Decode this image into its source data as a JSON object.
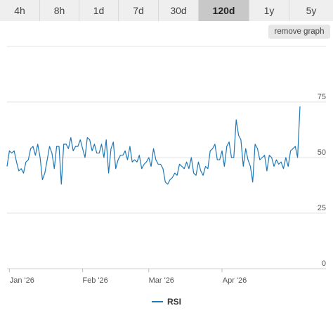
{
  "range_tabs": [
    "4h",
    "8h",
    "1d",
    "7d",
    "30d",
    "120d",
    "1y",
    "5y"
  ],
  "active_tab": "120d",
  "remove_button_label": "remove graph",
  "chart_data": {
    "type": "line",
    "title": "",
    "xlabel": "",
    "ylabel": "",
    "ylim": [
      0,
      100
    ],
    "y_ticks": [
      0,
      25,
      50,
      75
    ],
    "x_ticks": [
      {
        "label": "Jan '26",
        "date": "2026-01-01"
      },
      {
        "label": "Feb '26",
        "date": "2026-02-01"
      },
      {
        "label": "Mar '26",
        "date": "2026-03-01"
      },
      {
        "label": "Apr '26",
        "date": "2026-04-01"
      }
    ],
    "x_range": [
      "2025-12-31",
      "2026-05-15"
    ],
    "grid": true,
    "legend": "bottom-center",
    "series": [
      {
        "name": "RSI",
        "color": "#1f77b4",
        "points": [
          [
            "2025-12-31",
            46
          ],
          [
            "2026-01-01",
            53
          ],
          [
            "2026-01-02",
            52
          ],
          [
            "2026-01-03",
            53
          ],
          [
            "2026-01-04",
            48
          ],
          [
            "2026-01-05",
            44
          ],
          [
            "2026-01-06",
            45
          ],
          [
            "2026-01-07",
            43
          ],
          [
            "2026-01-08",
            48
          ],
          [
            "2026-01-09",
            49
          ],
          [
            "2026-01-10",
            54
          ],
          [
            "2026-01-11",
            55
          ],
          [
            "2026-01-12",
            51
          ],
          [
            "2026-01-13",
            56
          ],
          [
            "2026-01-14",
            50
          ],
          [
            "2026-01-15",
            40
          ],
          [
            "2026-01-16",
            43
          ],
          [
            "2026-01-17",
            49
          ],
          [
            "2026-01-18",
            55
          ],
          [
            "2026-01-19",
            52
          ],
          [
            "2026-01-20",
            45
          ],
          [
            "2026-01-21",
            55
          ],
          [
            "2026-01-22",
            55
          ],
          [
            "2026-01-23",
            38
          ],
          [
            "2026-01-24",
            56
          ],
          [
            "2026-01-25",
            56
          ],
          [
            "2026-01-26",
            54
          ],
          [
            "2026-01-27",
            59
          ],
          [
            "2026-01-28",
            53
          ],
          [
            "2026-01-29",
            55
          ],
          [
            "2026-01-30",
            55
          ],
          [
            "2026-01-31",
            58
          ],
          [
            "2026-02-01",
            54
          ],
          [
            "2026-02-02",
            50
          ],
          [
            "2026-02-03",
            59
          ],
          [
            "2026-02-04",
            58
          ],
          [
            "2026-02-05",
            53
          ],
          [
            "2026-02-06",
            56
          ],
          [
            "2026-02-07",
            52
          ],
          [
            "2026-02-08",
            52
          ],
          [
            "2026-02-09",
            56
          ],
          [
            "2026-02-10",
            50
          ],
          [
            "2026-02-11",
            58
          ],
          [
            "2026-02-12",
            43
          ],
          [
            "2026-02-13",
            54
          ],
          [
            "2026-02-14",
            57
          ],
          [
            "2026-02-15",
            45
          ],
          [
            "2026-02-16",
            49
          ],
          [
            "2026-02-17",
            51
          ],
          [
            "2026-02-18",
            51
          ],
          [
            "2026-02-19",
            53
          ],
          [
            "2026-02-20",
            49
          ],
          [
            "2026-02-21",
            55
          ],
          [
            "2026-02-22",
            48
          ],
          [
            "2026-02-23",
            49
          ],
          [
            "2026-02-24",
            48
          ],
          [
            "2026-02-25",
            51
          ],
          [
            "2026-02-26",
            45
          ],
          [
            "2026-02-27",
            47
          ],
          [
            "2026-02-28",
            48
          ],
          [
            "2026-03-01",
            50
          ],
          [
            "2026-03-02",
            46
          ],
          [
            "2026-03-03",
            54
          ],
          [
            "2026-03-04",
            49
          ],
          [
            "2026-03-05",
            47
          ],
          [
            "2026-03-06",
            47
          ],
          [
            "2026-03-07",
            45
          ],
          [
            "2026-03-08",
            39
          ],
          [
            "2026-03-09",
            38
          ],
          [
            "2026-03-10",
            40
          ],
          [
            "2026-03-11",
            41
          ],
          [
            "2026-03-12",
            43
          ],
          [
            "2026-03-13",
            42
          ],
          [
            "2026-03-14",
            47
          ],
          [
            "2026-03-15",
            46
          ],
          [
            "2026-03-16",
            45
          ],
          [
            "2026-03-17",
            48
          ],
          [
            "2026-03-18",
            45
          ],
          [
            "2026-03-19",
            50
          ],
          [
            "2026-03-20",
            43
          ],
          [
            "2026-03-21",
            42
          ],
          [
            "2026-03-22",
            48
          ],
          [
            "2026-03-23",
            44
          ],
          [
            "2026-03-24",
            42
          ],
          [
            "2026-03-25",
            46
          ],
          [
            "2026-03-26",
            45
          ],
          [
            "2026-03-27",
            53
          ],
          [
            "2026-03-28",
            54
          ],
          [
            "2026-03-29",
            56
          ],
          [
            "2026-03-30",
            49
          ],
          [
            "2026-03-31",
            49
          ],
          [
            "2026-04-01",
            53
          ],
          [
            "2026-04-02",
            46
          ],
          [
            "2026-04-03",
            55
          ],
          [
            "2026-04-04",
            57
          ],
          [
            "2026-04-05",
            50
          ],
          [
            "2026-04-06",
            50
          ],
          [
            "2026-04-07",
            67
          ],
          [
            "2026-04-08",
            60
          ],
          [
            "2026-04-09",
            58
          ],
          [
            "2026-04-10",
            46
          ],
          [
            "2026-04-11",
            54
          ],
          [
            "2026-04-12",
            49
          ],
          [
            "2026-04-13",
            46
          ],
          [
            "2026-04-14",
            39
          ],
          [
            "2026-04-15",
            56
          ],
          [
            "2026-04-16",
            54
          ],
          [
            "2026-04-17",
            49
          ],
          [
            "2026-04-18",
            50
          ],
          [
            "2026-04-19",
            51
          ],
          [
            "2026-04-20",
            44
          ],
          [
            "2026-04-21",
            51
          ],
          [
            "2026-04-22",
            50
          ],
          [
            "2026-04-23",
            46
          ],
          [
            "2026-04-24",
            49
          ],
          [
            "2026-04-25",
            47
          ],
          [
            "2026-04-26",
            48
          ],
          [
            "2026-04-27",
            45
          ],
          [
            "2026-04-28",
            50
          ],
          [
            "2026-04-29",
            46
          ],
          [
            "2026-04-30",
            53
          ],
          [
            "2026-05-01",
            54
          ],
          [
            "2026-05-02",
            55
          ],
          [
            "2026-05-03",
            50
          ],
          [
            "2026-05-04",
            73
          ]
        ]
      }
    ]
  }
}
